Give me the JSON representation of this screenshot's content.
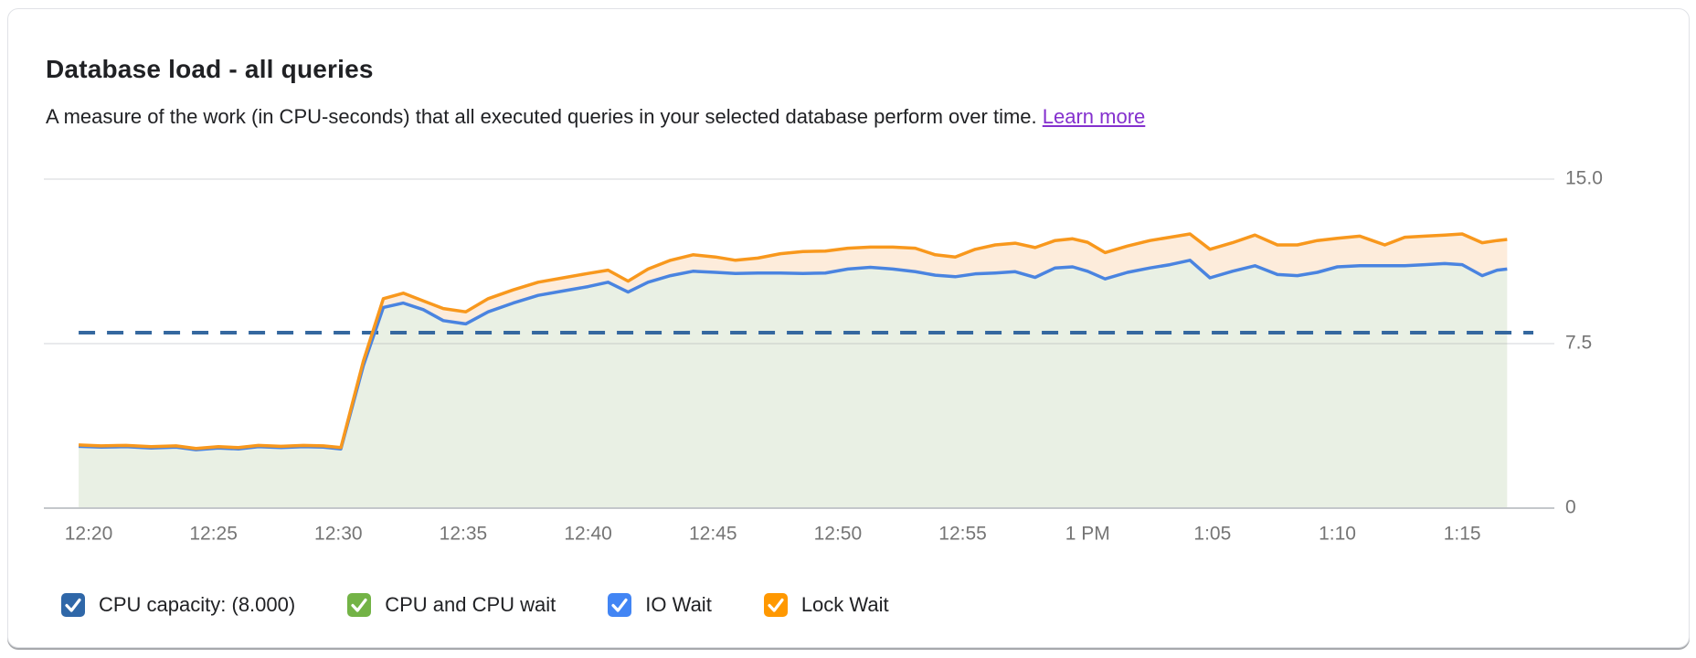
{
  "card": {
    "title": "Database load - all queries",
    "subtitle": "A measure of the work (in CPU-seconds) that all executed queries in your selected database perform over time.",
    "learn_more_label": "Learn more",
    "learn_more_color": "#8430ce"
  },
  "chart_data": {
    "type": "area",
    "stacked": true,
    "title": "Database load - all queries",
    "xlabel": "",
    "ylabel": "",
    "grid": true,
    "legend_position": "bottom",
    "y_range": [
      0,
      16.9
    ],
    "y_ticks": [
      {
        "value": 15,
        "label": "15.0"
      },
      {
        "value": 7.5,
        "label": "7.5"
      },
      {
        "value": 0,
        "label": "0"
      }
    ],
    "x_ticks": [
      {
        "t": 20,
        "label": "12:20"
      },
      {
        "t": 25,
        "label": "12:25"
      },
      {
        "t": 30,
        "label": "12:30"
      },
      {
        "t": 35,
        "label": "12:35"
      },
      {
        "t": 40,
        "label": "12:40"
      },
      {
        "t": 45,
        "label": "12:45"
      },
      {
        "t": 50,
        "label": "12:50"
      },
      {
        "t": 55,
        "label": "12:55"
      },
      {
        "t": 60,
        "label": "1 PM"
      },
      {
        "t": 65,
        "label": "1:05"
      },
      {
        "t": 70,
        "label": "1:10"
      },
      {
        "t": 75,
        "label": "1:15"
      }
    ],
    "capacity": {
      "value": 8,
      "label": "CPU capacity: (8.000)",
      "color": "#35689f"
    },
    "x_minutes": [
      19.6,
      20.5,
      21.5,
      22.5,
      23.5,
      24.3,
      25.2,
      26,
      26.8,
      27.7,
      28.6,
      29.4,
      30.1,
      31,
      31.8,
      32.6,
      33.4,
      34.2,
      35.1,
      36,
      37,
      38,
      39,
      40,
      40.8,
      41.6,
      42.4,
      43.3,
      44.2,
      45.1,
      45.9,
      46.8,
      47.7,
      48.6,
      49.5,
      50.4,
      51.3,
      52.2,
      53.1,
      53.9,
      54.7,
      55.5,
      56.3,
      57.1,
      57.9,
      58.7,
      59.4,
      60,
      60.7,
      61.6,
      62.5,
      63.3,
      64.1,
      64.9,
      65.8,
      66.7,
      67.6,
      68.4,
      69.2,
      70,
      70.9,
      71.4,
      71.9,
      72.7,
      73.5,
      74.3,
      75,
      75.8,
      76.4,
      76.8
    ],
    "series": [
      {
        "name": "IO Wait",
        "role": "stack-top of CPU and CPU wait + IO Wait",
        "line_color": "#4a84e0",
        "area_color": "#e9f0e4",
        "values": [
          2.82,
          2.78,
          2.8,
          2.74,
          2.78,
          2.66,
          2.74,
          2.7,
          2.8,
          2.76,
          2.8,
          2.78,
          2.7,
          6.5,
          9.15,
          9.35,
          9.05,
          8.55,
          8.4,
          8.95,
          9.35,
          9.7,
          9.9,
          10.1,
          10.3,
          9.85,
          10.3,
          10.6,
          10.8,
          10.75,
          10.7,
          10.72,
          10.72,
          10.7,
          10.72,
          10.9,
          10.98,
          10.9,
          10.78,
          10.62,
          10.55,
          10.68,
          10.72,
          10.78,
          10.52,
          10.95,
          11,
          10.8,
          10.45,
          10.75,
          10.95,
          11.1,
          11.3,
          10.5,
          10.8,
          11.05,
          10.65,
          10.6,
          10.75,
          11,
          11.05,
          11.05,
          11.05,
          11.05,
          11.1,
          11.15,
          11.1,
          10.6,
          10.85,
          10.9
        ]
      },
      {
        "name": "Lock Wait",
        "role": "stack-top of total load including Lock Wait",
        "line_color": "#f8981d",
        "area_color": "#fdecdb",
        "values": [
          2.88,
          2.84,
          2.86,
          2.8,
          2.84,
          2.72,
          2.8,
          2.76,
          2.86,
          2.82,
          2.86,
          2.84,
          2.76,
          6.7,
          9.55,
          9.8,
          9.45,
          9.1,
          8.95,
          9.55,
          9.95,
          10.3,
          10.5,
          10.7,
          10.85,
          10.35,
          10.9,
          11.3,
          11.55,
          11.45,
          11.3,
          11.4,
          11.6,
          11.7,
          11.72,
          11.85,
          11.9,
          11.9,
          11.85,
          11.55,
          11.45,
          11.8,
          12,
          12.08,
          11.88,
          12.2,
          12.28,
          12.12,
          11.65,
          11.95,
          12.2,
          12.35,
          12.5,
          11.8,
          12.1,
          12.45,
          12,
          12,
          12.2,
          12.3,
          12.4,
          12.2,
          12,
          12.35,
          12.4,
          12.45,
          12.5,
          12.1,
          12.2,
          12.25
        ]
      }
    ]
  },
  "legend": {
    "items": [
      {
        "label": "CPU capacity: (8.000)",
        "color": "#2f67a8",
        "checked": true
      },
      {
        "label": "CPU and CPU wait",
        "color": "#73b346",
        "checked": true
      },
      {
        "label": "IO Wait",
        "color": "#4285f4",
        "checked": true
      },
      {
        "label": "Lock Wait",
        "color": "#ff9800",
        "checked": true
      }
    ]
  }
}
